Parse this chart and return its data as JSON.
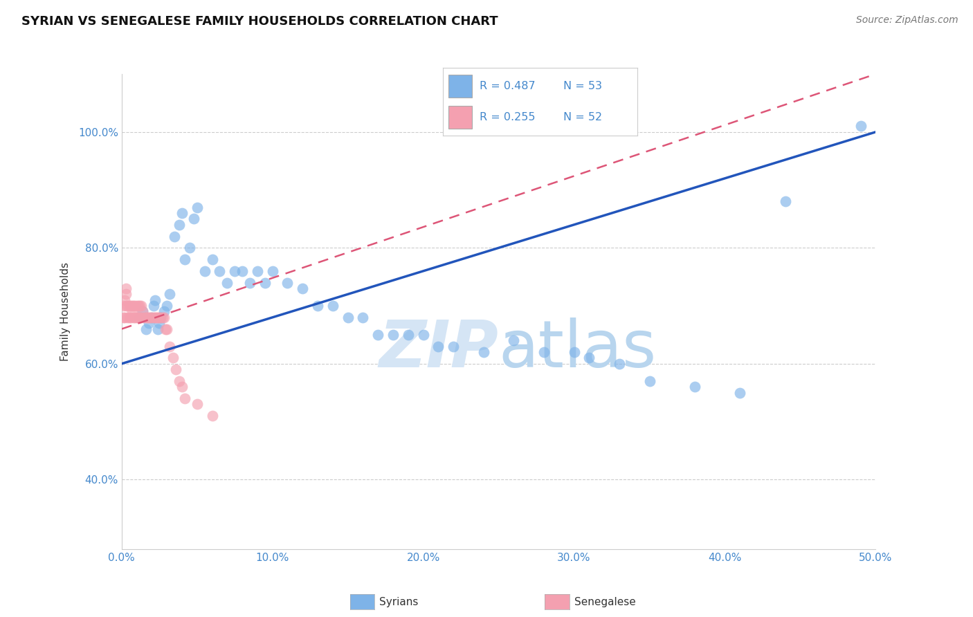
{
  "title": "SYRIAN VS SENEGALESE FAMILY HOUSEHOLDS CORRELATION CHART",
  "source": "Source: ZipAtlas.com",
  "ylabel": "Family Households",
  "xlim": [
    0.0,
    0.5
  ],
  "ylim": [
    0.28,
    1.1
  ],
  "xticks": [
    0.0,
    0.1,
    0.2,
    0.3,
    0.4,
    0.5
  ],
  "xtick_labels": [
    "0.0%",
    "10.0%",
    "20.0%",
    "30.0%",
    "40.0%",
    "50.0%"
  ],
  "yticks": [
    0.4,
    0.6,
    0.8,
    1.0
  ],
  "ytick_labels": [
    "40.0%",
    "60.0%",
    "80.0%",
    "100.0%"
  ],
  "legend_r_syrian": "R = 0.487",
  "legend_n_syrian": "N = 53",
  "legend_r_senegalese": "R = 0.255",
  "legend_n_senegalese": "N = 52",
  "syrian_color": "#7EB3E8",
  "senegalese_color": "#F4A0B0",
  "regression_syrian_color": "#2255BB",
  "regression_senegalese_color": "#DD5577",
  "legend_text_color": "#4488CC",
  "background_color": "#FFFFFF",
  "grid_color": "#CCCCCC",
  "syrian_x": [
    0.012,
    0.014,
    0.016,
    0.018,
    0.02,
    0.021,
    0.022,
    0.024,
    0.025,
    0.026,
    0.028,
    0.03,
    0.032,
    0.035,
    0.038,
    0.04,
    0.042,
    0.045,
    0.048,
    0.05,
    0.055,
    0.06,
    0.065,
    0.07,
    0.075,
    0.08,
    0.085,
    0.09,
    0.095,
    0.1,
    0.11,
    0.12,
    0.13,
    0.14,
    0.15,
    0.16,
    0.17,
    0.18,
    0.19,
    0.2,
    0.21,
    0.22,
    0.24,
    0.26,
    0.28,
    0.3,
    0.31,
    0.33,
    0.35,
    0.38,
    0.41,
    0.44,
    0.49
  ],
  "syrian_y": [
    0.68,
    0.69,
    0.66,
    0.67,
    0.68,
    0.7,
    0.71,
    0.66,
    0.67,
    0.68,
    0.69,
    0.7,
    0.72,
    0.82,
    0.84,
    0.86,
    0.78,
    0.8,
    0.85,
    0.87,
    0.76,
    0.78,
    0.76,
    0.74,
    0.76,
    0.76,
    0.74,
    0.76,
    0.74,
    0.76,
    0.74,
    0.73,
    0.7,
    0.7,
    0.68,
    0.68,
    0.65,
    0.65,
    0.65,
    0.65,
    0.63,
    0.63,
    0.62,
    0.64,
    0.62,
    0.62,
    0.61,
    0.6,
    0.57,
    0.56,
    0.55,
    0.88,
    1.01
  ],
  "senegalese_x": [
    0.001,
    0.001,
    0.002,
    0.002,
    0.003,
    0.003,
    0.003,
    0.004,
    0.004,
    0.005,
    0.005,
    0.006,
    0.006,
    0.007,
    0.007,
    0.008,
    0.008,
    0.009,
    0.009,
    0.01,
    0.01,
    0.011,
    0.011,
    0.012,
    0.012,
    0.013,
    0.013,
    0.014,
    0.015,
    0.016,
    0.017,
    0.018,
    0.019,
    0.02,
    0.021,
    0.022,
    0.023,
    0.024,
    0.025,
    0.026,
    0.027,
    0.028,
    0.029,
    0.03,
    0.032,
    0.034,
    0.036,
    0.038,
    0.04,
    0.042,
    0.05,
    0.06
  ],
  "senegalese_y": [
    0.68,
    0.7,
    0.68,
    0.71,
    0.7,
    0.72,
    0.73,
    0.68,
    0.7,
    0.68,
    0.7,
    0.68,
    0.7,
    0.69,
    0.7,
    0.68,
    0.7,
    0.68,
    0.7,
    0.68,
    0.7,
    0.68,
    0.7,
    0.68,
    0.7,
    0.68,
    0.7,
    0.69,
    0.68,
    0.68,
    0.68,
    0.68,
    0.68,
    0.68,
    0.68,
    0.68,
    0.68,
    0.68,
    0.68,
    0.68,
    0.68,
    0.68,
    0.66,
    0.66,
    0.63,
    0.61,
    0.59,
    0.57,
    0.56,
    0.54,
    0.53,
    0.51
  ],
  "watermark_zip": "ZIP",
  "watermark_atlas": "atlas"
}
